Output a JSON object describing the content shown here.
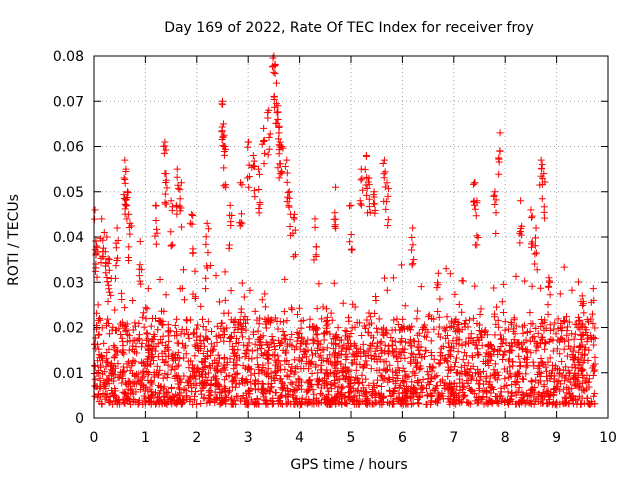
{
  "chart_data": {
    "type": "scatter",
    "title": "Day 169 of 2022, Rate Of TEC Index for receiver froy",
    "xlabel": "GPS time / hours",
    "ylabel": "ROTI / TECUs",
    "xlim": [
      0,
      10
    ],
    "ylim": [
      0,
      0.08
    ],
    "xticks": [
      0,
      1,
      2,
      3,
      4,
      5,
      6,
      7,
      8,
      9,
      10
    ],
    "xtick_labels": [
      "0",
      "1",
      "2",
      "3",
      "4",
      "5",
      "6",
      "7",
      "8",
      "9",
      "10"
    ],
    "yticks": [
      0,
      0.01,
      0.02,
      0.03,
      0.04,
      0.05,
      0.06,
      0.07,
      0.08
    ],
    "ytick_labels": [
      "0",
      "0.01",
      "0.02",
      "0.03",
      "0.04",
      "0.05",
      "0.06",
      "0.07",
      "0.08"
    ],
    "grid": true,
    "marker": "+",
    "series": [
      {
        "name": "ROTI",
        "color": "#ff0000",
        "x_range": [
          0.0,
          9.75
        ],
        "baseline_range": [
          0.003,
          0.022
        ],
        "points": [
          [
            0.02,
            0.046
          ],
          [
            0.05,
            0.038
          ],
          [
            0.08,
            0.025
          ],
          [
            0.1,
            0.014
          ],
          [
            0.15,
            0.044
          ],
          [
            0.2,
            0.041
          ],
          [
            0.25,
            0.04
          ],
          [
            0.3,
            0.035
          ],
          [
            0.45,
            0.042
          ],
          [
            0.6,
            0.057
          ],
          [
            0.62,
            0.055
          ],
          [
            0.65,
            0.05
          ],
          [
            0.7,
            0.043
          ],
          [
            0.9,
            0.039
          ],
          [
            1.2,
            0.047
          ],
          [
            1.38,
            0.061
          ],
          [
            1.4,
            0.054
          ],
          [
            1.5,
            0.048
          ],
          [
            1.62,
            0.055
          ],
          [
            1.7,
            0.052
          ],
          [
            1.9,
            0.045
          ],
          [
            2.2,
            0.043
          ],
          [
            2.5,
            0.07
          ],
          [
            2.52,
            0.065
          ],
          [
            2.55,
            0.06
          ],
          [
            2.65,
            0.047
          ],
          [
            2.85,
            0.052
          ],
          [
            3.0,
            0.061
          ],
          [
            3.1,
            0.058
          ],
          [
            3.2,
            0.055
          ],
          [
            3.3,
            0.064
          ],
          [
            3.4,
            0.068
          ],
          [
            3.5,
            0.08
          ],
          [
            3.52,
            0.078
          ],
          [
            3.55,
            0.074
          ],
          [
            3.58,
            0.066
          ],
          [
            3.6,
            0.063
          ],
          [
            3.65,
            0.06
          ],
          [
            3.75,
            0.057
          ],
          [
            3.8,
            0.05
          ],
          [
            3.9,
            0.045
          ],
          [
            4.3,
            0.044
          ],
          [
            4.7,
            0.051
          ],
          [
            5.0,
            0.047
          ],
          [
            5.2,
            0.055
          ],
          [
            5.3,
            0.058
          ],
          [
            5.35,
            0.053
          ],
          [
            5.45,
            0.05
          ],
          [
            5.65,
            0.057
          ],
          [
            5.7,
            0.052
          ],
          [
            6.2,
            0.042
          ],
          [
            6.7,
            0.032
          ],
          [
            7.4,
            0.052
          ],
          [
            7.45,
            0.048
          ],
          [
            7.8,
            0.05
          ],
          [
            7.9,
            0.063
          ],
          [
            8.3,
            0.048
          ],
          [
            8.5,
            0.046
          ],
          [
            8.7,
            0.057
          ],
          [
            8.75,
            0.054
          ],
          [
            8.6,
            0.042
          ],
          [
            8.85,
            0.031
          ],
          [
            9.5,
            0.027
          ]
        ]
      }
    ]
  }
}
